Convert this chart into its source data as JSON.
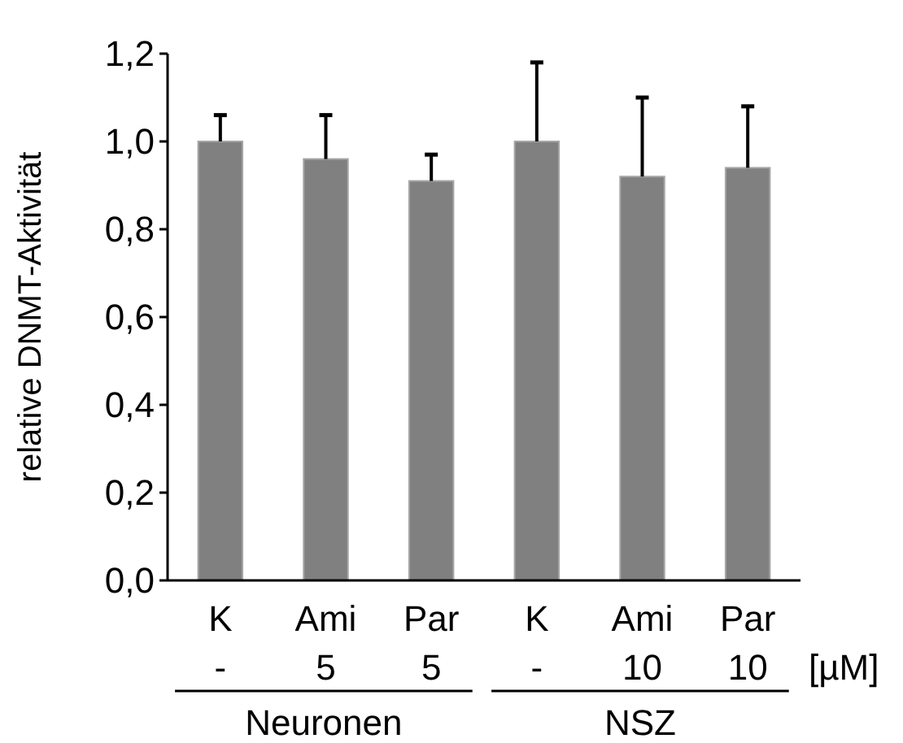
{
  "chart_data": {
    "type": "bar",
    "ylabel": "relative DNMT-Aktivität",
    "categories": [
      "K\n-",
      "Ami\n5",
      "Par\n5",
      "K\n-",
      "Ami\n10",
      "Par\n10"
    ],
    "values": [
      1.0,
      0.96,
      0.91,
      1.0,
      0.92,
      0.94
    ],
    "errors": [
      [
        1.0,
        1.06
      ],
      [
        0.96,
        1.06
      ],
      [
        0.91,
        0.97
      ],
      [
        1.0,
        1.18
      ],
      [
        0.92,
        1.1
      ],
      [
        0.94,
        1.08
      ]
    ],
    "color": "#808080",
    "ylim": [
      0,
      1.2
    ],
    "yticks": [
      {
        "value": 0,
        "label": "0,0"
      },
      {
        "value": 0.2,
        "label": "0,2"
      },
      {
        "value": 0.4,
        "label": "0,4"
      },
      {
        "value": 0.6,
        "label": "0,6"
      },
      {
        "value": 0.8,
        "label": "0,8"
      },
      {
        "value": 1.0,
        "label": "1,0"
      },
      {
        "value": 1.2,
        "label": "1,2"
      }
    ],
    "annotations": [
      "[µM]",
      "Neuronen",
      "NSZ"
    ],
    "grid": false
  }
}
